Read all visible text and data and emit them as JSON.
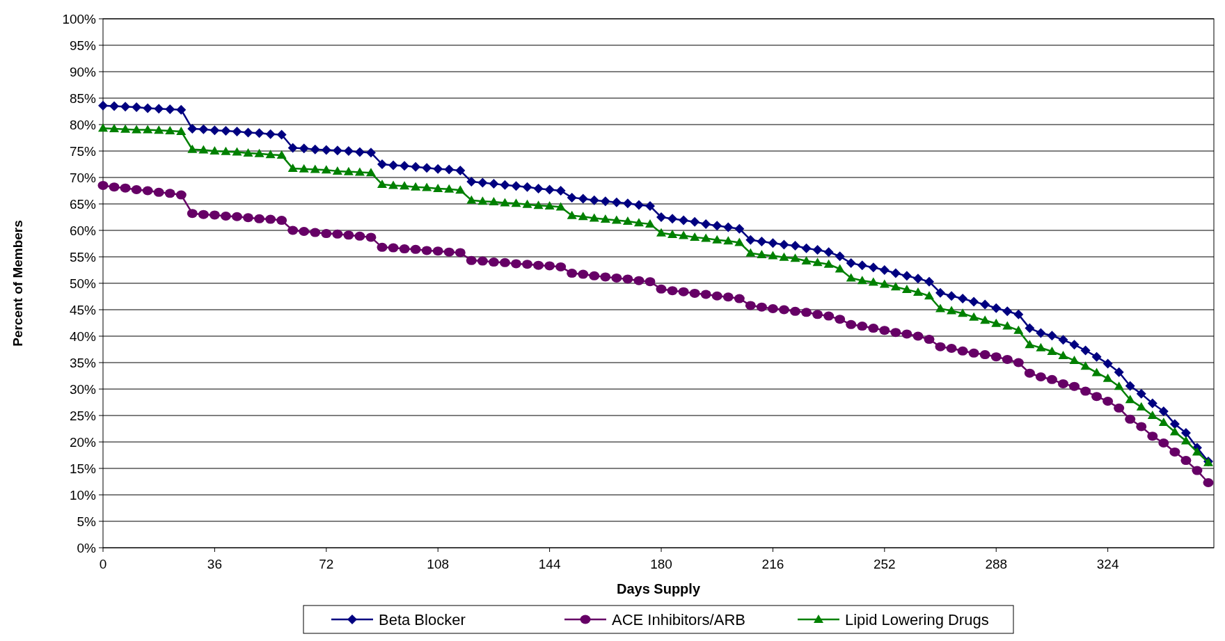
{
  "chart_data": {
    "type": "line",
    "xlabel": "Days Supply",
    "ylabel": "Percent of Members",
    "categories": [
      "0",
      null,
      null,
      null,
      null,
      null,
      null,
      null,
      null,
      null,
      "36",
      null,
      null,
      null,
      null,
      null,
      null,
      null,
      null,
      null,
      "72",
      null,
      null,
      null,
      null,
      null,
      null,
      null,
      null,
      null,
      "108",
      null,
      null,
      null,
      null,
      null,
      null,
      null,
      null,
      null,
      "144",
      null,
      null,
      null,
      null,
      null,
      null,
      null,
      null,
      null,
      "180",
      null,
      null,
      null,
      null,
      null,
      null,
      null,
      null,
      null,
      "216",
      null,
      null,
      null,
      null,
      null,
      null,
      null,
      null,
      null,
      "252",
      null,
      null,
      null,
      null,
      null,
      null,
      null,
      null,
      null,
      "288",
      null,
      null,
      null,
      null,
      null,
      null,
      null,
      null,
      null,
      "324",
      null,
      null,
      null,
      null,
      null,
      null,
      null,
      null,
      null
    ],
    "ylim": [
      0,
      100
    ],
    "yticks": [
      {
        "value": 0,
        "label": "0%"
      },
      {
        "value": 5,
        "label": "5%"
      },
      {
        "value": 10,
        "label": "10%"
      },
      {
        "value": 15,
        "label": "15%"
      },
      {
        "value": 20,
        "label": "20%"
      },
      {
        "value": 25,
        "label": "25%"
      },
      {
        "value": 30,
        "label": "30%"
      },
      {
        "value": 35,
        "label": "35%"
      },
      {
        "value": 40,
        "label": "40%"
      },
      {
        "value": 45,
        "label": "45%"
      },
      {
        "value": 50,
        "label": "50%"
      },
      {
        "value": 55,
        "label": "55%"
      },
      {
        "value": 60,
        "label": "60%"
      },
      {
        "value": 65,
        "label": "65%"
      },
      {
        "value": 70,
        "label": "70%"
      },
      {
        "value": 75,
        "label": "75%"
      },
      {
        "value": 80,
        "label": "80%"
      },
      {
        "value": 85,
        "label": "85%"
      },
      {
        "value": 90,
        "label": "90%"
      },
      {
        "value": 95,
        "label": "95%"
      },
      {
        "value": 100,
        "label": "100%"
      }
    ],
    "grid": "y",
    "legend": "bottom",
    "line_style": "solid",
    "series": [
      {
        "name": "Beta Blocker",
        "color": "#000080",
        "marker": "diamond",
        "values": [
          83.6,
          83.5,
          83.4,
          83.3,
          83.1,
          83.0,
          82.9,
          82.8,
          79.2,
          79.1,
          78.9,
          78.8,
          78.7,
          78.5,
          78.4,
          78.2,
          78.1,
          75.6,
          75.5,
          75.3,
          75.2,
          75.1,
          75.0,
          74.8,
          74.7,
          72.5,
          72.3,
          72.2,
          72.0,
          71.8,
          71.6,
          71.5,
          71.3,
          69.2,
          69.0,
          68.8,
          68.6,
          68.4,
          68.2,
          67.9,
          67.7,
          67.5,
          66.2,
          66.0,
          65.7,
          65.5,
          65.3,
          65.1,
          64.8,
          64.6,
          62.5,
          62.2,
          61.9,
          61.6,
          61.2,
          60.9,
          60.6,
          60.3,
          58.2,
          57.9,
          57.6,
          57.3,
          57.1,
          56.6,
          56.3,
          55.9,
          55.1,
          53.8,
          53.4,
          53.0,
          52.5,
          51.9,
          51.4,
          50.9,
          50.3,
          48.2,
          47.6,
          47.1,
          46.5,
          46.0,
          45.3,
          44.7,
          44.1,
          41.5,
          40.6,
          40.1,
          39.3,
          38.4,
          37.3,
          36.1,
          34.8,
          33.2,
          30.6,
          29.1,
          27.3,
          25.8,
          23.4,
          21.7,
          18.9,
          16.3
        ]
      },
      {
        "name": "ACE Inhibitors/ARB",
        "color": "#660066",
        "marker": "circle",
        "values": [
          68.5,
          68.2,
          68.0,
          67.7,
          67.5,
          67.2,
          67.0,
          66.7,
          63.2,
          63.0,
          62.9,
          62.7,
          62.6,
          62.4,
          62.2,
          62.1,
          61.9,
          60.0,
          59.8,
          59.6,
          59.4,
          59.3,
          59.1,
          58.9,
          58.7,
          56.8,
          56.7,
          56.5,
          56.4,
          56.2,
          56.1,
          55.9,
          55.8,
          54.3,
          54.2,
          54.0,
          53.9,
          53.7,
          53.6,
          53.4,
          53.3,
          53.1,
          51.9,
          51.7,
          51.4,
          51.2,
          51.0,
          50.8,
          50.5,
          50.3,
          48.9,
          48.6,
          48.4,
          48.1,
          47.9,
          47.6,
          47.4,
          47.1,
          45.8,
          45.5,
          45.2,
          45.0,
          44.7,
          44.5,
          44.1,
          43.8,
          43.2,
          42.2,
          41.9,
          41.5,
          41.1,
          40.7,
          40.4,
          40.0,
          39.4,
          38.0,
          37.7,
          37.2,
          36.8,
          36.5,
          36.1,
          35.6,
          35.0,
          33.0,
          32.3,
          31.8,
          31.0,
          30.5,
          29.6,
          28.6,
          27.7,
          26.4,
          24.3,
          22.9,
          21.1,
          19.8,
          18.1,
          16.5,
          14.6,
          12.3
        ]
      },
      {
        "name": "Lipid Lowering Drugs",
        "color": "#008000",
        "marker": "triangle",
        "values": [
          79.3,
          79.2,
          79.1,
          79.0,
          79.0,
          78.9,
          78.8,
          78.7,
          75.3,
          75.2,
          75.0,
          74.9,
          74.8,
          74.6,
          74.5,
          74.3,
          74.2,
          71.7,
          71.6,
          71.5,
          71.4,
          71.2,
          71.1,
          71.0,
          70.9,
          68.7,
          68.5,
          68.4,
          68.2,
          68.1,
          67.9,
          67.8,
          67.6,
          65.7,
          65.5,
          65.4,
          65.2,
          65.1,
          64.9,
          64.7,
          64.6,
          64.4,
          62.8,
          62.6,
          62.3,
          62.1,
          61.9,
          61.7,
          61.4,
          61.2,
          59.5,
          59.2,
          59.0,
          58.7,
          58.5,
          58.2,
          58.0,
          57.7,
          55.7,
          55.4,
          55.2,
          54.9,
          54.7,
          54.2,
          53.9,
          53.6,
          52.7,
          51.0,
          50.5,
          50.2,
          49.8,
          49.3,
          48.8,
          48.3,
          47.6,
          45.2,
          44.8,
          44.3,
          43.6,
          43.0,
          42.4,
          41.9,
          41.1,
          38.4,
          37.8,
          37.1,
          36.3,
          35.4,
          34.3,
          33.1,
          32.0,
          30.5,
          28.0,
          26.6,
          25.0,
          23.7,
          21.9,
          20.2,
          18.1,
          16.1
        ]
      }
    ]
  }
}
